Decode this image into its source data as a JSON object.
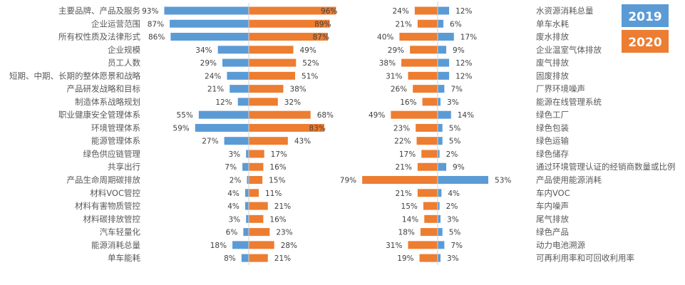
{
  "chart_data": [
    {
      "type": "bar",
      "orientation": "horizontal-butterfly",
      "categories": [
        "主要品牌、产品及服务",
        "企业运营范围",
        "所有权性质及法律形式",
        "企业规模",
        "员工人数",
        "短期、中期、长期的整体愿景和战略",
        "产品研发战略和目标",
        "制造体系战略规划",
        "职业健康安全管理体系",
        "环境管理体系",
        "能源管理体系",
        "绿色供应链管理",
        "共享出行",
        "产品生命周期碳排放",
        "材料VOC管控",
        "材料有害物质管控",
        "材料碳排放管控",
        "汽车轻量化",
        "能源消耗总量",
        "单车能耗"
      ],
      "series": [
        {
          "name": "2019",
          "side": "left",
          "color": "#5B9BD5",
          "values": [
            93,
            87,
            86,
            34,
            29,
            24,
            21,
            12,
            55,
            59,
            27,
            3,
            7,
            2,
            4,
            4,
            3,
            6,
            18,
            8
          ]
        },
        {
          "name": "2020",
          "side": "right",
          "color": "#ED7D31",
          "values": [
            96,
            89,
            87,
            49,
            52,
            51,
            38,
            32,
            68,
            83,
            43,
            17,
            16,
            15,
            11,
            21,
            16,
            23,
            28,
            21
          ]
        }
      ],
      "unit": "%"
    },
    {
      "type": "bar",
      "orientation": "horizontal-butterfly",
      "categories": [
        "水资源消耗总量",
        "单车水耗",
        "废水排放",
        "企业温室气体排放",
        "废气排放",
        "固废排放",
        "厂界环境噪声",
        "能源在线管理系统",
        "绿色工厂",
        "绿色包装",
        "绿色运输",
        "绿色储存",
        "通过环境管理认证的经销商数量或比例",
        "产品使用能源消耗",
        "车内VOC",
        "车内噪声",
        "尾气排放",
        "绿色产品",
        "动力电池溯源",
        "可再利用率和可回收利用率"
      ],
      "series": [
        {
          "name": "2020",
          "side": "left",
          "color": "#ED7D31",
          "values": [
            24,
            21,
            40,
            29,
            38,
            31,
            26,
            16,
            49,
            23,
            22,
            17,
            21,
            79,
            21,
            15,
            14,
            18,
            31,
            19
          ]
        },
        {
          "name": "2019",
          "side": "right",
          "color": "#5B9BD5",
          "values": [
            12,
            6,
            17,
            9,
            12,
            12,
            7,
            3,
            14,
            5,
            5,
            2,
            9,
            53,
            4,
            2,
            3,
            5,
            7,
            3
          ]
        }
      ],
      "unit": "%"
    }
  ],
  "legend": [
    {
      "label": "2019",
      "color": "#5B9BD5"
    },
    {
      "label": "2020",
      "color": "#ED7D31"
    }
  ]
}
